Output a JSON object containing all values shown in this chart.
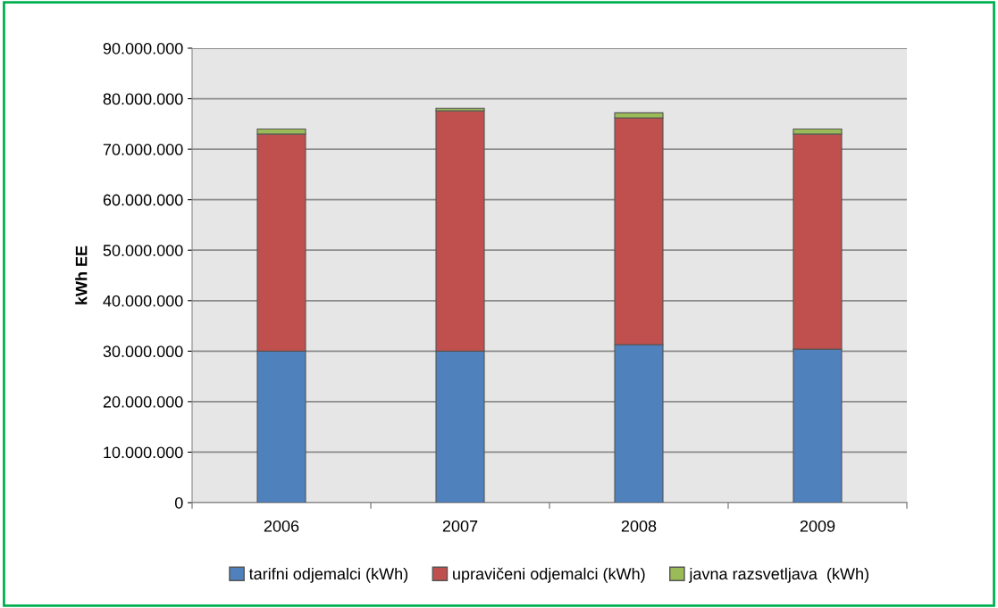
{
  "chart_data": {
    "type": "bar",
    "stacked": true,
    "ylabel": "kWh EE",
    "categories": [
      "2006",
      "2007",
      "2008",
      "2009"
    ],
    "series": [
      {
        "name": "tarifni odjemalci (kWh)",
        "color": "#4f81bd",
        "values": [
          30000000,
          30000000,
          31300000,
          30400000
        ]
      },
      {
        "name": "upravičeni odjemalci (kWh)",
        "color": "#c0504d",
        "values": [
          43000000,
          47600000,
          44900000,
          42600000
        ]
      },
      {
        "name": "javna razsvetljava  (kWh)",
        "color": "#9bbb59",
        "values": [
          1000000,
          500000,
          1000000,
          1000000
        ]
      }
    ],
    "ylim": [
      0,
      90000000
    ],
    "yticks": [
      {
        "value": 0,
        "label": "0"
      },
      {
        "value": 10000000,
        "label": "10.000.000"
      },
      {
        "value": 20000000,
        "label": "20.000.000"
      },
      {
        "value": 30000000,
        "label": "30.000.000"
      },
      {
        "value": 40000000,
        "label": "40.000.000"
      },
      {
        "value": 50000000,
        "label": "50.000.000"
      },
      {
        "value": 60000000,
        "label": "60.000.000"
      },
      {
        "value": 70000000,
        "label": "70.000.000"
      },
      {
        "value": 80000000,
        "label": "80.000.000"
      },
      {
        "value": 90000000,
        "label": "90.000.000"
      }
    ],
    "grid": "y",
    "legend": "bottom"
  }
}
